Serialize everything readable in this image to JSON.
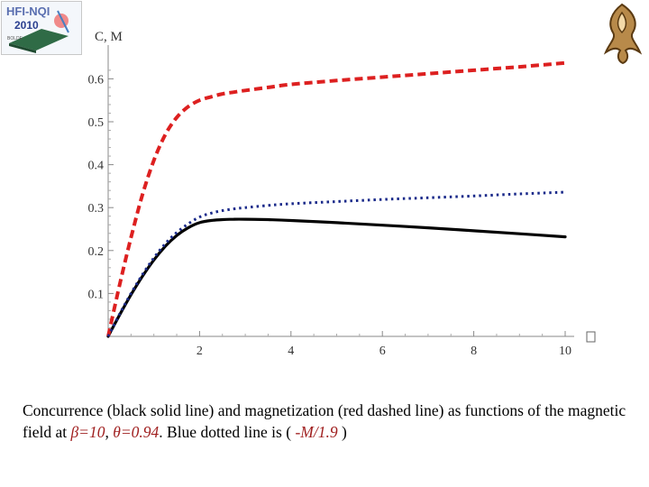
{
  "logo": {
    "line1": "HFI-NQI",
    "line2": "2010",
    "line3": "BOLDE"
  },
  "chart_data": {
    "type": "line",
    "xlim": [
      0,
      10
    ],
    "ylim": [
      0,
      0.65
    ],
    "xticks": [
      2,
      4,
      6,
      8,
      10
    ],
    "yticks": [
      0.1,
      0.2,
      0.3,
      0.4,
      0.5,
      0.6
    ],
    "ylabel": "C, M",
    "xlabel": "",
    "grid": false,
    "legend": "none",
    "x": [
      0,
      0.25,
      0.5,
      0.75,
      1,
      1.25,
      1.5,
      1.75,
      2,
      2.25,
      2.5,
      2.75,
      3,
      3.5,
      4,
      5,
      6,
      7,
      8,
      9,
      10
    ],
    "series": [
      {
        "color": "#000000",
        "style": "solid",
        "values": [
          0.0,
          0.05,
          0.097,
          0.14,
          0.178,
          0.21,
          0.235,
          0.253,
          0.265,
          0.27,
          0.272,
          0.273,
          0.273,
          0.272,
          0.27,
          0.265,
          0.259,
          0.253,
          0.246,
          0.239,
          0.232
        ]
      },
      {
        "color": "#dd2020",
        "style": "dashed",
        "values": [
          0.0,
          0.12,
          0.23,
          0.33,
          0.41,
          0.47,
          0.51,
          0.535,
          0.55,
          0.558,
          0.565,
          0.569,
          0.573,
          0.58,
          0.587,
          0.596,
          0.604,
          0.612,
          0.62,
          0.628,
          0.637
        ]
      },
      {
        "color": "#1a2a8a",
        "style": "dotted",
        "values": [
          0.0,
          0.052,
          0.1,
          0.144,
          0.183,
          0.216,
          0.242,
          0.262,
          0.278,
          0.287,
          0.293,
          0.297,
          0.3,
          0.305,
          0.309,
          0.314,
          0.319,
          0.323,
          0.327,
          0.332,
          0.336
        ]
      }
    ]
  },
  "caption": {
    "part1": "Concurrence (black solid line) and magnetization (red dashed line) as functions of the magnetic field at ",
    "beta": "β=10",
    "sep": ",  ",
    "theta": "θ=0.94",
    "part2": ". Blue dotted line is ( ",
    "ratio": "-M/1.9",
    "part3": " )"
  }
}
